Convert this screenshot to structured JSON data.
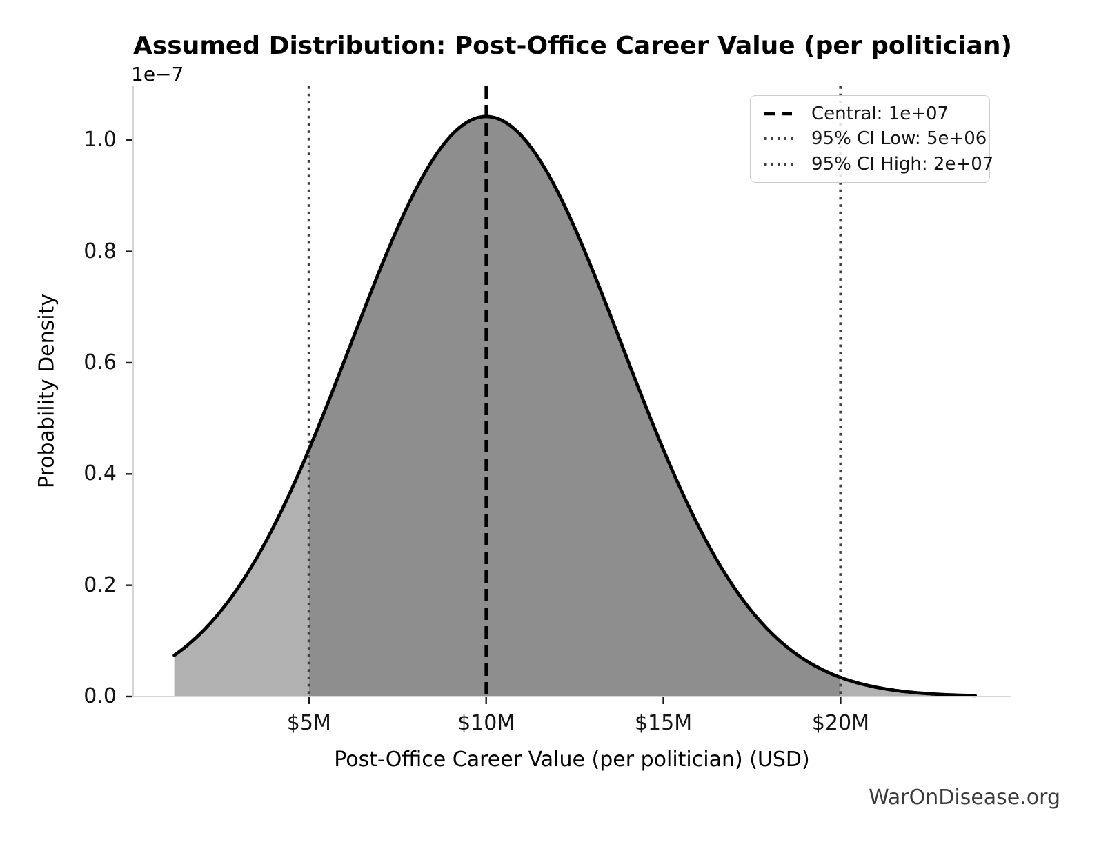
{
  "chart_data": {
    "type": "area",
    "title": "Assumed Distribution: Post-Office Career Value (per politician)",
    "xlabel": "Post-Office Career Value (per politician) (USD)",
    "ylabel": "Probability Density",
    "y_offset_label": "1e−7",
    "watermark": "WarOnDisease.org",
    "grid": false,
    "distribution": {
      "kind": "normal",
      "mean_usd": 10000000,
      "sigma_usd": 3826531,
      "peak_density_1e7": 1.0425
    },
    "central_usd": 10000000,
    "ci_low_usd": 5000000,
    "ci_high_usd": 20000000,
    "curve_domain_usd": [
      1200000,
      23800000
    ],
    "xlim_usd": [
      40000,
      24800000
    ],
    "ylim_1e7": [
      0,
      1.097
    ],
    "x_ticks": [
      {
        "label": "$5M",
        "value_usd": 5000000
      },
      {
        "label": "$10M",
        "value_usd": 10000000
      },
      {
        "label": "$15M",
        "value_usd": 15000000
      },
      {
        "label": "$20M",
        "value_usd": 20000000
      }
    ],
    "y_ticks": [
      {
        "label": "0.0",
        "value_1e7": 0.0
      },
      {
        "label": "0.2",
        "value_1e7": 0.2
      },
      {
        "label": "0.4",
        "value_1e7": 0.4
      },
      {
        "label": "0.6",
        "value_1e7": 0.6
      },
      {
        "label": "0.8",
        "value_1e7": 0.8
      },
      {
        "label": "1.0",
        "value_1e7": 1.0
      }
    ],
    "markers": [
      {
        "name": "central",
        "value_usd": 10000000,
        "style": "dashed",
        "color": "#000000"
      },
      {
        "name": "ci_low",
        "value_usd": 5000000,
        "style": "dotted",
        "color": "#404040"
      },
      {
        "name": "ci_high",
        "value_usd": 20000000,
        "style": "dotted",
        "color": "#404040"
      }
    ],
    "legend": {
      "position": "upper right",
      "entries": [
        {
          "label": "Central: 1e+07",
          "style": "dashed",
          "color": "#000000"
        },
        {
          "label": "95% CI Low: 5e+06",
          "style": "dotted",
          "color": "#404040"
        },
        {
          "label": "95% CI High: 2e+07",
          "style": "dotted",
          "color": "#404040"
        }
      ]
    },
    "shading": {
      "inner_range_usd": [
        5000000,
        20000000
      ],
      "inner_color": "#8e8e8e",
      "outer_color": "#b1b1b1"
    },
    "colors": {
      "curve": "#000000",
      "spine": "#d5d5d5",
      "tick": "#1a1a1a",
      "text": "#000000",
      "watermark": "#3a3a3a",
      "legend_border": "#cccccc",
      "background": "#ffffff"
    }
  }
}
